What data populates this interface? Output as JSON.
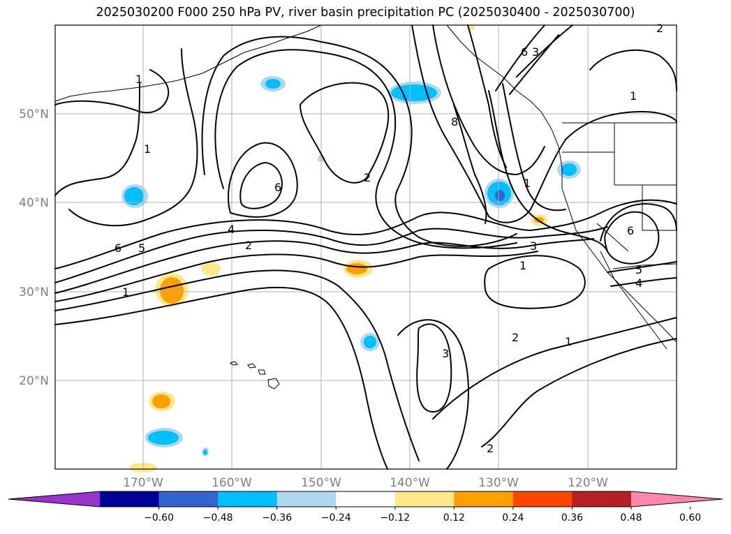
{
  "title": "2025030200 F000 250 hPa PV, river basin precipitation PC (2025030400 - 2025030700)",
  "lat_labels": [
    "50°N",
    "40°N",
    "30°N",
    "20°N"
  ],
  "lon_labels": [
    "170°W",
    "160°W",
    "150°W",
    "140°W",
    "130°W",
    "120°W"
  ],
  "colorbar": {
    "tick_labels": [
      "−0.60",
      "−0.48",
      "−0.36",
      "−0.24",
      "−0.12",
      "0.12",
      "0.24",
      "0.36",
      "0.48",
      "0.60"
    ],
    "colors": [
      "#9933cc",
      "#000099",
      "#3366cc",
      "#00bfff",
      "#add8f0",
      "#ffffff",
      "#ffe88a",
      "#ffa000",
      "#ff4500",
      "#b22222",
      "#ff88aa"
    ]
  },
  "contour_labels": [
    "1",
    "2",
    "3",
    "4",
    "5",
    "6",
    "8",
    "1",
    "2",
    "3",
    "1",
    "2",
    "1",
    "5",
    "6",
    "4",
    "6",
    "1",
    "1",
    "2",
    "6",
    "1",
    "3",
    "2"
  ]
}
